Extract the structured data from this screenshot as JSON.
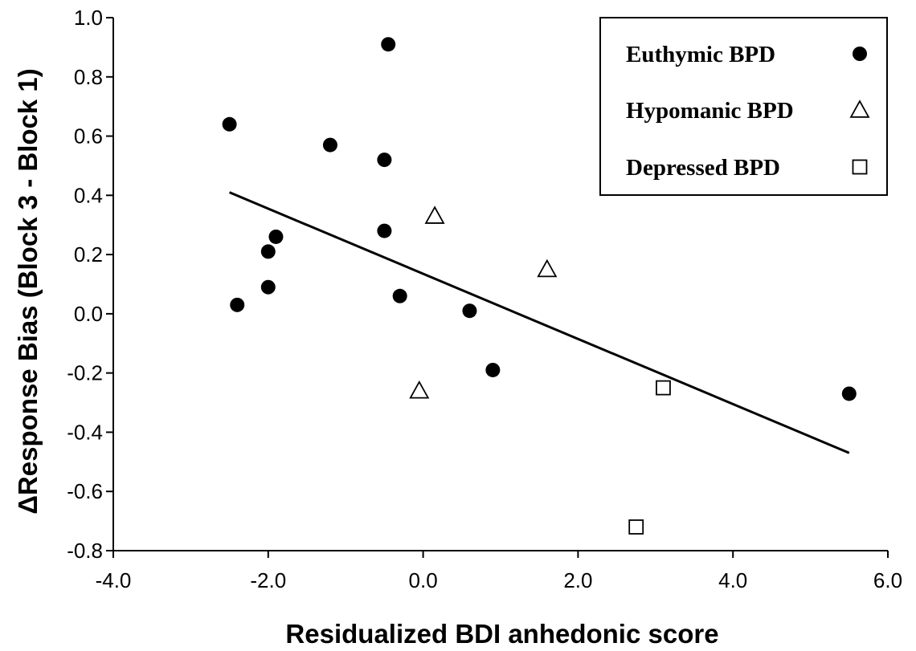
{
  "chart_data": {
    "type": "scatter",
    "xlabel": "Residualized BDI anhedonic score",
    "ylabel": "ΔResponse Bias (Block 3 - Block 1)",
    "xlim": [
      -4.0,
      6.0
    ],
    "ylim": [
      -0.8,
      1.0
    ],
    "x_ticks": [
      -4.0,
      -2.0,
      0.0,
      2.0,
      4.0,
      6.0
    ],
    "y_ticks": [
      1.0,
      0.8,
      0.6,
      0.4,
      0.2,
      0.0,
      -0.2,
      -0.4,
      -0.6,
      -0.8
    ],
    "x_tick_labels": [
      "-4.0",
      "-2.0",
      "0.0",
      "2.0",
      "4.0",
      "6.0"
    ],
    "y_tick_labels": [
      "1.0",
      "0.8",
      "0.6",
      "0.4",
      "0.2",
      "0.0",
      "-0.2",
      "-0.4",
      "-0.6",
      "-0.8"
    ],
    "grid": false,
    "legend_position": "top-right",
    "series": [
      {
        "name": "Euthymic BPD",
        "marker": "filled-circle",
        "color": "#000000",
        "points": [
          [
            -0.45,
            0.91
          ],
          [
            -2.5,
            0.64
          ],
          [
            -1.2,
            0.57
          ],
          [
            -0.5,
            0.52
          ],
          [
            -0.5,
            0.28
          ],
          [
            -1.9,
            0.26
          ],
          [
            -2.0,
            0.21
          ],
          [
            -2.0,
            0.09
          ],
          [
            -2.4,
            0.03
          ],
          [
            -0.3,
            0.06
          ],
          [
            0.6,
            0.01
          ],
          [
            0.9,
            -0.19
          ],
          [
            5.5,
            -0.27
          ]
        ]
      },
      {
        "name": "Hypomanic BPD",
        "marker": "open-triangle",
        "color": "#000000",
        "points": [
          [
            0.15,
            0.33
          ],
          [
            1.6,
            0.15
          ],
          [
            -0.05,
            -0.26
          ]
        ]
      },
      {
        "name": "Depressed BPD",
        "marker": "open-square",
        "color": "#000000",
        "points": [
          [
            3.1,
            -0.25
          ],
          [
            2.75,
            -0.72
          ]
        ]
      }
    ],
    "regression_line": {
      "x": [
        -2.5,
        5.5
      ],
      "y": [
        0.41,
        -0.47
      ]
    }
  }
}
